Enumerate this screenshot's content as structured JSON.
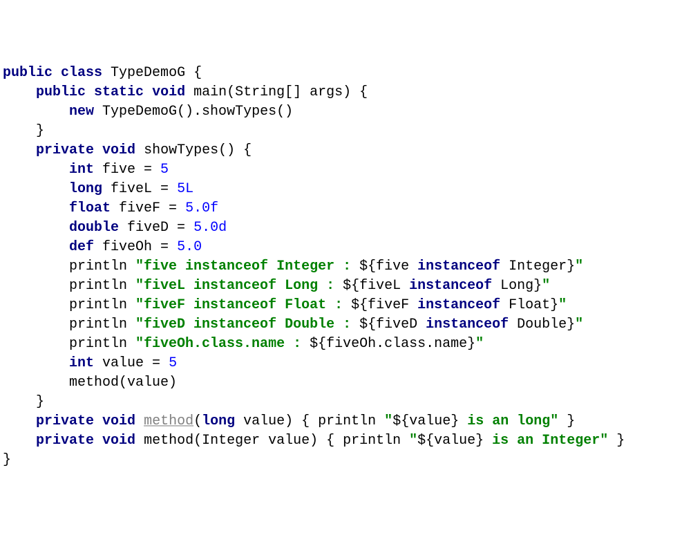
{
  "colors": {
    "background": "#ffffff",
    "text": "#000000",
    "keyword": "#000080",
    "literal": "#0000ff",
    "string": "#008000",
    "unused": "#808080"
  },
  "typography": {
    "font_family": "Menlo, Consolas, Courier New, monospace",
    "font_size_pt": 15,
    "line_height": 1.4,
    "keyword_weight": "bold",
    "string_weight": "bold"
  },
  "code": {
    "lines": [
      {
        "indent": 0,
        "tokens": [
          {
            "t": "kw",
            "v": "public"
          },
          {
            "t": "p",
            "v": " "
          },
          {
            "t": "kw",
            "v": "class"
          },
          {
            "t": "p",
            "v": " TypeDemoG {"
          }
        ]
      },
      {
        "indent": 1,
        "tokens": [
          {
            "t": "kw",
            "v": "public"
          },
          {
            "t": "p",
            "v": " "
          },
          {
            "t": "kw",
            "v": "static"
          },
          {
            "t": "p",
            "v": " "
          },
          {
            "t": "kw",
            "v": "void"
          },
          {
            "t": "p",
            "v": " main(String[] args) {"
          }
        ]
      },
      {
        "indent": 2,
        "tokens": [
          {
            "t": "kw",
            "v": "new"
          },
          {
            "t": "p",
            "v": " TypeDemoG().showTypes()"
          }
        ]
      },
      {
        "indent": 1,
        "tokens": [
          {
            "t": "p",
            "v": "}"
          }
        ]
      },
      {
        "indent": 0,
        "tokens": [
          {
            "t": "p",
            "v": ""
          }
        ]
      },
      {
        "indent": 1,
        "tokens": [
          {
            "t": "kw",
            "v": "private"
          },
          {
            "t": "p",
            "v": " "
          },
          {
            "t": "kw",
            "v": "void"
          },
          {
            "t": "p",
            "v": " showTypes() {"
          }
        ]
      },
      {
        "indent": 2,
        "tokens": [
          {
            "t": "kw",
            "v": "int"
          },
          {
            "t": "p",
            "v": " five = "
          },
          {
            "t": "lit",
            "v": "5"
          }
        ]
      },
      {
        "indent": 2,
        "tokens": [
          {
            "t": "kw",
            "v": "long"
          },
          {
            "t": "p",
            "v": " fiveL = "
          },
          {
            "t": "lit",
            "v": "5L"
          }
        ]
      },
      {
        "indent": 2,
        "tokens": [
          {
            "t": "kw",
            "v": "float"
          },
          {
            "t": "p",
            "v": " fiveF = "
          },
          {
            "t": "lit",
            "v": "5.0f"
          }
        ]
      },
      {
        "indent": 2,
        "tokens": [
          {
            "t": "kw",
            "v": "double"
          },
          {
            "t": "p",
            "v": " fiveD = "
          },
          {
            "t": "lit",
            "v": "5.0d"
          }
        ]
      },
      {
        "indent": 2,
        "tokens": [
          {
            "t": "kw",
            "v": "def"
          },
          {
            "t": "p",
            "v": " fiveOh = "
          },
          {
            "t": "lit",
            "v": "5.0"
          }
        ]
      },
      {
        "indent": 0,
        "tokens": [
          {
            "t": "p",
            "v": ""
          }
        ]
      },
      {
        "indent": 2,
        "tokens": [
          {
            "t": "p",
            "v": "println "
          },
          {
            "t": "str",
            "v": "\"five instanceof Integer : "
          },
          {
            "t": "p",
            "v": "${five "
          },
          {
            "t": "kw",
            "v": "instanceof"
          },
          {
            "t": "p",
            "v": " Integer}"
          },
          {
            "t": "str",
            "v": "\""
          }
        ]
      },
      {
        "indent": 2,
        "tokens": [
          {
            "t": "p",
            "v": "println "
          },
          {
            "t": "str",
            "v": "\"fiveL instanceof Long : "
          },
          {
            "t": "p",
            "v": "${fiveL "
          },
          {
            "t": "kw",
            "v": "instanceof"
          },
          {
            "t": "p",
            "v": " Long}"
          },
          {
            "t": "str",
            "v": "\""
          }
        ]
      },
      {
        "indent": 2,
        "tokens": [
          {
            "t": "p",
            "v": "println "
          },
          {
            "t": "str",
            "v": "\"fiveF instanceof Float : "
          },
          {
            "t": "p",
            "v": "${fiveF "
          },
          {
            "t": "kw",
            "v": "instanceof"
          },
          {
            "t": "p",
            "v": " Float}"
          },
          {
            "t": "str",
            "v": "\""
          }
        ]
      },
      {
        "indent": 2,
        "tokens": [
          {
            "t": "p",
            "v": "println "
          },
          {
            "t": "str",
            "v": "\"fiveD instanceof Double : "
          },
          {
            "t": "p",
            "v": "${fiveD "
          },
          {
            "t": "kw",
            "v": "instanceof"
          },
          {
            "t": "p",
            "v": " Double}"
          },
          {
            "t": "str",
            "v": "\""
          }
        ]
      },
      {
        "indent": 2,
        "tokens": [
          {
            "t": "p",
            "v": "println "
          },
          {
            "t": "str",
            "v": "\"fiveOh.class.name : "
          },
          {
            "t": "p",
            "v": "${fiveOh.class.name}"
          },
          {
            "t": "str",
            "v": "\""
          }
        ]
      },
      {
        "indent": 0,
        "tokens": [
          {
            "t": "p",
            "v": ""
          }
        ]
      },
      {
        "indent": 2,
        "tokens": [
          {
            "t": "kw",
            "v": "int"
          },
          {
            "t": "p",
            "v": " value = "
          },
          {
            "t": "lit",
            "v": "5"
          }
        ]
      },
      {
        "indent": 2,
        "tokens": [
          {
            "t": "p",
            "v": "method(value)"
          }
        ]
      },
      {
        "indent": 1,
        "tokens": [
          {
            "t": "p",
            "v": "}"
          }
        ]
      },
      {
        "indent": 0,
        "tokens": [
          {
            "t": "p",
            "v": ""
          }
        ]
      },
      {
        "indent": 1,
        "tokens": [
          {
            "t": "kw",
            "v": "private"
          },
          {
            "t": "p",
            "v": " "
          },
          {
            "t": "kw",
            "v": "void"
          },
          {
            "t": "p",
            "v": " "
          },
          {
            "t": "unused",
            "v": "method"
          },
          {
            "t": "p",
            "v": "("
          },
          {
            "t": "kw",
            "v": "long"
          },
          {
            "t": "p",
            "v": " value) { println "
          },
          {
            "t": "str",
            "v": "\""
          },
          {
            "t": "p",
            "v": "${value}"
          },
          {
            "t": "str",
            "v": " is an long\""
          },
          {
            "t": "p",
            "v": " }"
          }
        ]
      },
      {
        "indent": 0,
        "tokens": [
          {
            "t": "p",
            "v": ""
          }
        ]
      },
      {
        "indent": 1,
        "tokens": [
          {
            "t": "kw",
            "v": "private"
          },
          {
            "t": "p",
            "v": " "
          },
          {
            "t": "kw",
            "v": "void"
          },
          {
            "t": "p",
            "v": " method(Integer value) { println "
          },
          {
            "t": "str",
            "v": "\""
          },
          {
            "t": "p",
            "v": "${value}"
          },
          {
            "t": "str",
            "v": " is an Integer\""
          },
          {
            "t": "p",
            "v": " }"
          }
        ]
      },
      {
        "indent": 0,
        "tokens": [
          {
            "t": "p",
            "v": "}"
          }
        ]
      }
    ],
    "indent_unit": "    "
  }
}
